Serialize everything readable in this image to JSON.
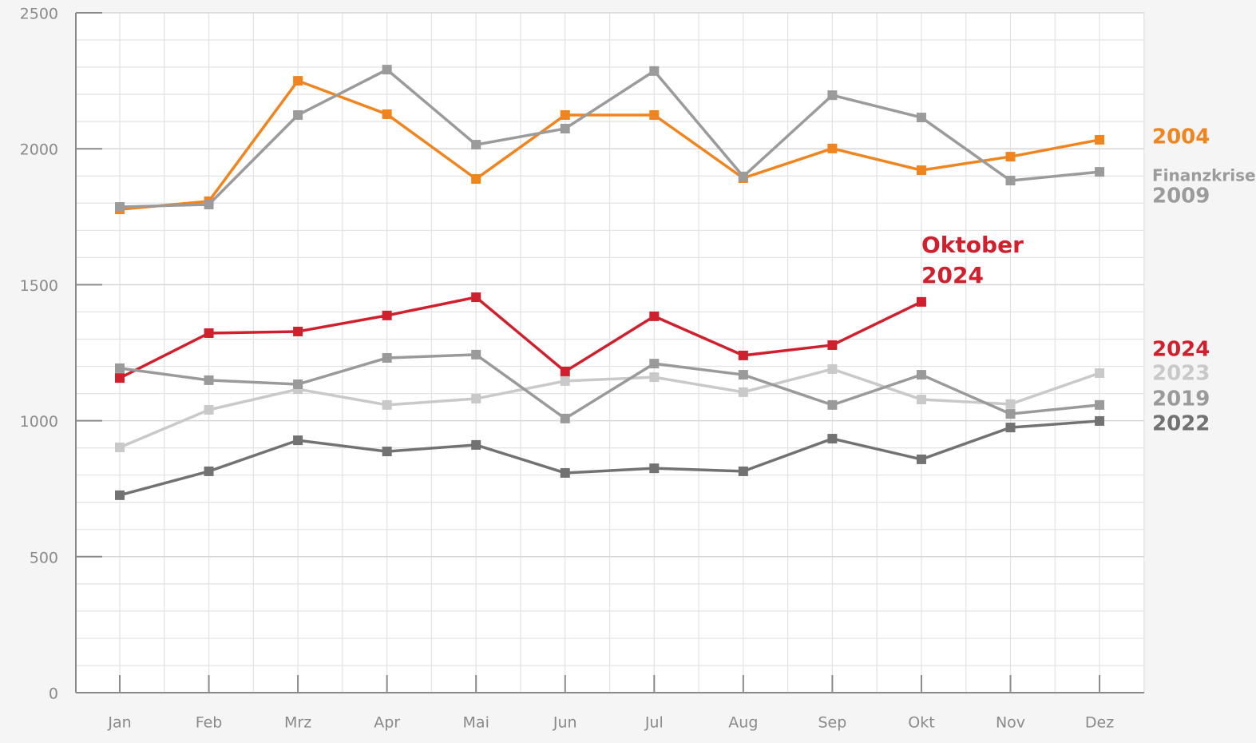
{
  "chart_data": {
    "type": "line",
    "categories": [
      "Jan",
      "Feb",
      "Mrz",
      "Apr",
      "Mai",
      "Jun",
      "Jul",
      "Aug",
      "Sep",
      "Okt",
      "Nov",
      "Dez"
    ],
    "series": [
      {
        "name": "2004",
        "color": "#f08520",
        "values": [
          1777,
          1807,
          2250,
          2127,
          1889,
          2124,
          2124,
          1892,
          2001,
          1921,
          1971,
          2033
        ]
      },
      {
        "name": "2009",
        "color": "#9b9b9b",
        "values": [
          1786,
          1795,
          2124,
          2291,
          2015,
          2074,
          2286,
          1898,
          2197,
          2115,
          1883,
          1915
        ]
      },
      {
        "name": "2024",
        "color": "#d0202e",
        "values": [
          1157,
          1322,
          1328,
          1387,
          1454,
          1181,
          1384,
          1240,
          1278,
          1437,
          null,
          null
        ]
      },
      {
        "name": "2023",
        "color": "#c9c9c9",
        "values": [
          902,
          1040,
          1116,
          1058,
          1081,
          1146,
          1160,
          1105,
          1190,
          1078,
          1061,
          1175
        ]
      },
      {
        "name": "2019",
        "color": "#9a9a9a",
        "values": [
          1193,
          1149,
          1134,
          1231,
          1243,
          1008,
          1210,
          1169,
          1058,
          1169,
          1025,
          1058
        ]
      },
      {
        "name": "2022",
        "color": "#727272",
        "values": [
          726,
          814,
          928,
          887,
          911,
          808,
          825,
          814,
          934,
          858,
          975,
          999
        ]
      }
    ],
    "annotations": [
      {
        "lines": [
          "Finanzkrise"
        ],
        "color": "#9b9b9b"
      },
      {
        "lines": [
          "Oktober",
          "2024"
        ],
        "color": "#d0202e"
      }
    ],
    "ylim": [
      0,
      2500
    ],
    "yticks": [
      0,
      500,
      1000,
      1500,
      2000,
      2500
    ],
    "minor_yticks": [
      100,
      200,
      300,
      400,
      600,
      700,
      800,
      900,
      1100,
      1200,
      1300,
      1400,
      1600,
      1700,
      1800,
      1900,
      2100,
      2200,
      2300,
      2400
    ],
    "grid": true
  }
}
